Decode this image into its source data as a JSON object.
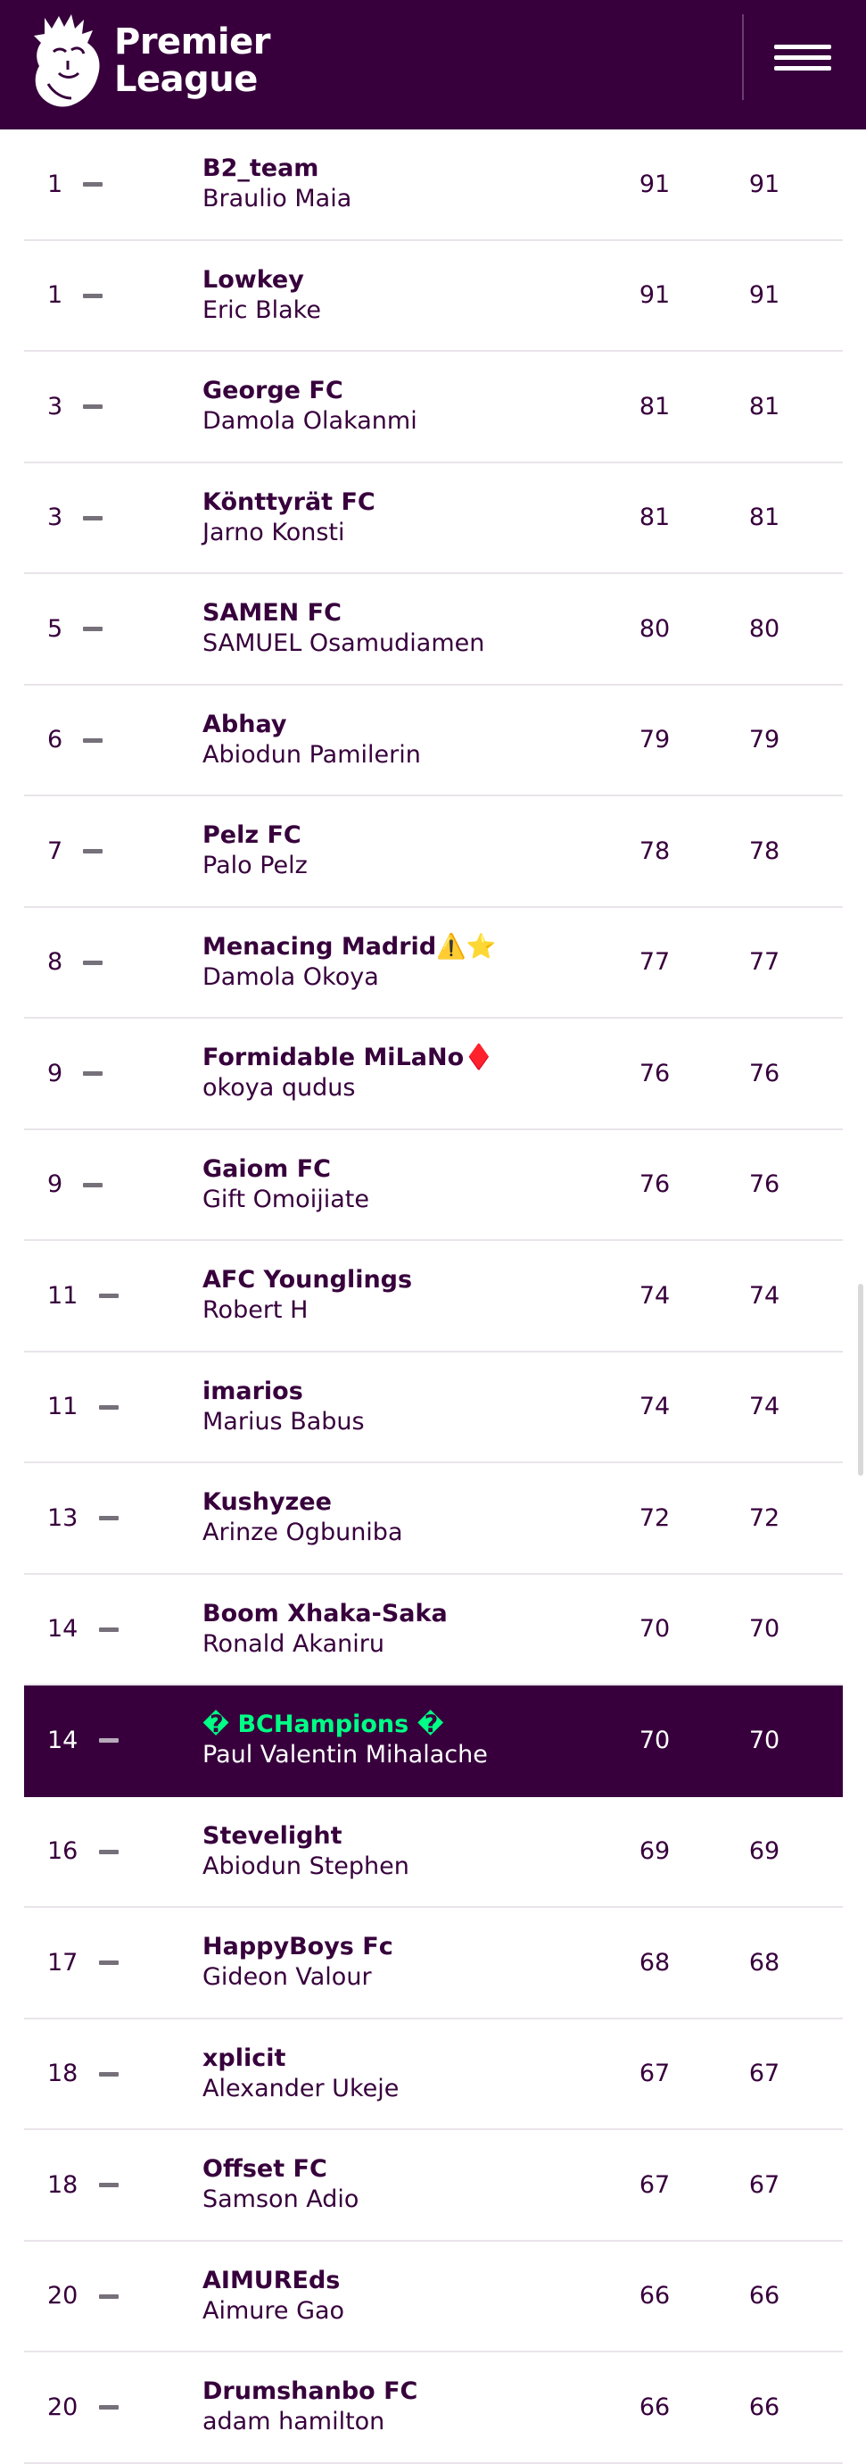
{
  "brand": {
    "line1": "Premier",
    "line2": "League"
  },
  "colors": {
    "primary": "#37003c",
    "highlight_text": "#00ff85"
  },
  "icons": {
    "logo": "lion-icon",
    "menu": "hamburger-menu-icon",
    "movement": "no-change-dash-icon"
  },
  "rows": [
    {
      "rank": "1",
      "team": "B2_team",
      "manager": "Braulio Maia",
      "gw": "91",
      "total": "91"
    },
    {
      "rank": "1",
      "team": "Lowkey",
      "manager": "Eric Blake",
      "gw": "91",
      "total": "91"
    },
    {
      "rank": "3",
      "team": "George FC",
      "manager": "Damola Olakanmi",
      "gw": "81",
      "total": "81"
    },
    {
      "rank": "3",
      "team": "Könttyrät FC",
      "manager": "Jarno Konsti",
      "gw": "81",
      "total": "81"
    },
    {
      "rank": "5",
      "team": "SAMEN FC",
      "manager": "SAMUEL Osamudiamen",
      "gw": "80",
      "total": "80"
    },
    {
      "rank": "6",
      "team": "Abhay",
      "manager": "Abiodun Pamilerin",
      "gw": "79",
      "total": "79"
    },
    {
      "rank": "7",
      "team": "Pelz FC",
      "manager": "Palo Pelz",
      "gw": "78",
      "total": "78"
    },
    {
      "rank": "8",
      "team": "Menacing Madrid⚠️⭐",
      "manager": "Damola Okoya",
      "gw": "77",
      "total": "77"
    },
    {
      "rank": "9",
      "team": "Formidable MiLaNo♦️",
      "manager": "okoya qudus",
      "gw": "76",
      "total": "76"
    },
    {
      "rank": "9",
      "team": "Gaiom FC",
      "manager": "Gift Omoijiate",
      "gw": "76",
      "total": "76"
    },
    {
      "rank": "11",
      "team": "AFC Younglings",
      "manager": "Robert H",
      "gw": "74",
      "total": "74"
    },
    {
      "rank": "11",
      "team": "imarios",
      "manager": "Marius Babus",
      "gw": "74",
      "total": "74"
    },
    {
      "rank": "13",
      "team": "Kushyzee",
      "manager": "Arinze Ogbuniba",
      "gw": "72",
      "total": "72"
    },
    {
      "rank": "14",
      "team": "Boom Xhaka-Saka",
      "manager": "Ronald Akaniru",
      "gw": "70",
      "total": "70"
    },
    {
      "rank": "14",
      "team": "� BCHampions �",
      "manager": "Paul Valentin Mihalache",
      "gw": "70",
      "total": "70",
      "highlight": true
    },
    {
      "rank": "16",
      "team": "Stevelight",
      "manager": "Abiodun Stephen",
      "gw": "69",
      "total": "69"
    },
    {
      "rank": "17",
      "team": "HappyBoys Fc",
      "manager": "Gideon Valour",
      "gw": "68",
      "total": "68"
    },
    {
      "rank": "18",
      "team": "xplicit",
      "manager": "Alexander Ukeje",
      "gw": "67",
      "total": "67"
    },
    {
      "rank": "18",
      "team": "Offset FC",
      "manager": "Samson Adio",
      "gw": "67",
      "total": "67"
    },
    {
      "rank": "20",
      "team": "AIMUREds",
      "manager": "Aimure Gao",
      "gw": "66",
      "total": "66"
    },
    {
      "rank": "20",
      "team": "Drumshanbo FC",
      "manager": "adam hamilton",
      "gw": "66",
      "total": "66"
    }
  ]
}
